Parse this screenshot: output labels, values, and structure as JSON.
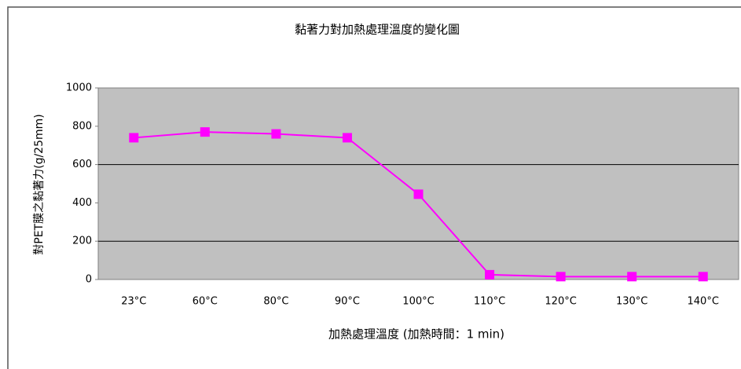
{
  "chart_data": {
    "type": "line",
    "title": "黏著力對加熱處理溫度的變化圖",
    "x_label": "加熱處理溫度 (加熱時間：1 min)",
    "y_label": "對PET膜之黏著力(g/25mm)",
    "categories": [
      "23°C",
      "60°C",
      "80°C",
      "90°C",
      "100°C",
      "110°C",
      "120°C",
      "130°C",
      "140°C"
    ],
    "series": [
      {
        "color": "#ff00ff",
        "values": [
          740,
          770,
          760,
          740,
          445,
          25,
          15,
          15,
          15
        ]
      }
    ],
    "ylim": [
      0,
      1000
    ],
    "yticks": [
      0,
      200,
      400,
      600,
      800,
      1000
    ],
    "grid_values": [
      200,
      600
    ]
  }
}
